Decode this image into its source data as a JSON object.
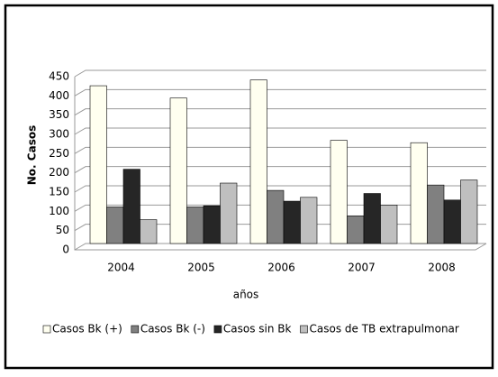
{
  "chart_data": {
    "type": "bar",
    "categories": [
      "2004",
      "2005",
      "2006",
      "2007",
      "2008"
    ],
    "series": [
      {
        "name": "Casos Bk (+)",
        "color": "#fffff0",
        "values": [
          410,
          378,
          425,
          268,
          262
        ]
      },
      {
        "name": "Casos Bk (-)",
        "color": "#808080",
        "values": [
          95,
          95,
          138,
          72,
          152
        ]
      },
      {
        "name": "Casos sin Bk",
        "color": "#262626",
        "values": [
          193,
          98,
          110,
          130,
          113
        ]
      },
      {
        "name": "Casos de TB extrapulmonar",
        "color": "#bfbfbf",
        "values": [
          62,
          157,
          120,
          100,
          165
        ]
      }
    ],
    "x_label": "años",
    "y_label": "No. Casos",
    "ylim": [
      0,
      450
    ],
    "yticks": [
      0,
      50,
      100,
      150,
      200,
      250,
      300,
      350,
      400,
      450
    ],
    "grid": true,
    "legend": "bottom"
  }
}
